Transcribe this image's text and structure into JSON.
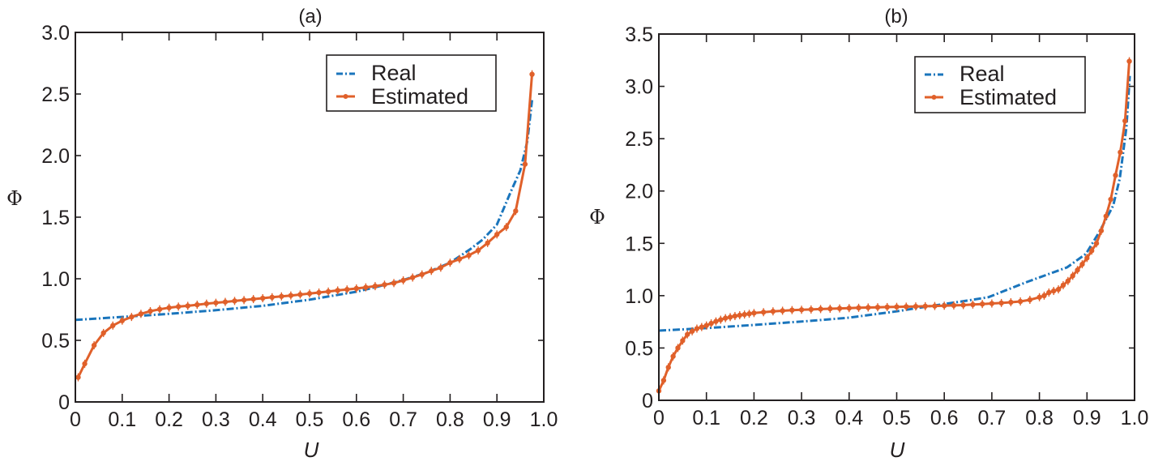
{
  "colors": {
    "real": "#1a75bc",
    "estimated": "#e0602a",
    "axis": "#231f20"
  },
  "chart_data": [
    {
      "type": "line",
      "title": "(a)",
      "xlabel": "U",
      "ylabel": "Φ",
      "xlim": [
        0,
        1.0
      ],
      "ylim": [
        0,
        3.0
      ],
      "xticks": [
        "0",
        "0.1",
        "0.2",
        "0.3",
        "0.4",
        "0.5",
        "0.6",
        "0.7",
        "0.8",
        "0.9",
        "1.0"
      ],
      "yticks": [
        "0",
        "0.5",
        "1.0",
        "1.5",
        "2.0",
        "2.5",
        "3.0"
      ],
      "xtick_values": [
        0,
        0.1,
        0.2,
        0.3,
        0.4,
        0.5,
        0.6,
        0.7,
        0.8,
        0.9,
        1.0
      ],
      "ytick_values": [
        0,
        0.5,
        1.0,
        1.5,
        2.0,
        2.5,
        3.0
      ],
      "grid": false,
      "legend": {
        "position": "top-right",
        "entries": [
          "Real",
          "Estimated"
        ]
      },
      "series": [
        {
          "name": "Real",
          "style": "dash-dot",
          "x": [
            0,
            0.1,
            0.2,
            0.3,
            0.4,
            0.5,
            0.6,
            0.65,
            0.7,
            0.75,
            0.8,
            0.843,
            0.87,
            0.9,
            0.93,
            0.95,
            0.965,
            0.975
          ],
          "y": [
            0.666,
            0.69,
            0.715,
            0.745,
            0.78,
            0.83,
            0.895,
            0.94,
            0.99,
            1.05,
            1.13,
            1.24,
            1.32,
            1.44,
            1.71,
            1.88,
            2.12,
            2.45
          ]
        },
        {
          "name": "Estimated",
          "style": "solid-markers",
          "x": [
            0.006,
            0.02,
            0.04,
            0.06,
            0.08,
            0.1,
            0.12,
            0.14,
            0.16,
            0.18,
            0.2,
            0.22,
            0.24,
            0.26,
            0.28,
            0.3,
            0.32,
            0.34,
            0.36,
            0.38,
            0.4,
            0.42,
            0.44,
            0.46,
            0.48,
            0.5,
            0.52,
            0.54,
            0.56,
            0.58,
            0.6,
            0.62,
            0.64,
            0.66,
            0.68,
            0.7,
            0.72,
            0.74,
            0.76,
            0.78,
            0.8,
            0.82,
            0.84,
            0.86,
            0.88,
            0.9,
            0.92,
            0.94,
            0.96,
            0.975
          ],
          "y": [
            0.2,
            0.31,
            0.46,
            0.56,
            0.62,
            0.66,
            0.69,
            0.715,
            0.737,
            0.752,
            0.765,
            0.774,
            0.78,
            0.789,
            0.798,
            0.805,
            0.812,
            0.82,
            0.827,
            0.835,
            0.842,
            0.85,
            0.857,
            0.864,
            0.872,
            0.88,
            0.888,
            0.896,
            0.905,
            0.913,
            0.921,
            0.93,
            0.94,
            0.952,
            0.965,
            0.987,
            1.01,
            1.035,
            1.064,
            1.09,
            1.13,
            1.16,
            1.19,
            1.23,
            1.29,
            1.36,
            1.42,
            1.55,
            1.93,
            2.66
          ]
        }
      ]
    },
    {
      "type": "line",
      "title": "(b)",
      "xlabel": "U",
      "ylabel": "Φ",
      "xlim": [
        0,
        1.0
      ],
      "ylim": [
        0,
        3.5
      ],
      "xticks": [
        "0",
        "0.1",
        "0.2",
        "0.3",
        "0.4",
        "0.5",
        "0.6",
        "0.7",
        "0.8",
        "0.9",
        "1.0"
      ],
      "yticks": [
        "0",
        "0.5",
        "1.0",
        "1.5",
        "2.0",
        "2.5",
        "3.0",
        "3.5"
      ],
      "xtick_values": [
        0,
        0.1,
        0.2,
        0.3,
        0.4,
        0.5,
        0.6,
        0.7,
        0.8,
        0.9,
        1.0
      ],
      "ytick_values": [
        0,
        0.5,
        1.0,
        1.5,
        2.0,
        2.5,
        3.0,
        3.5
      ],
      "grid": false,
      "legend": {
        "position": "top-right",
        "entries": [
          "Real",
          "Estimated"
        ]
      },
      "series": [
        {
          "name": "Real",
          "style": "dash-dot",
          "x": [
            0,
            0.1,
            0.2,
            0.32,
            0.4,
            0.5,
            0.54,
            0.6,
            0.659,
            0.693,
            0.773,
            0.858,
            0.898,
            0.926,
            0.955,
            0.969,
            0.983,
            0.99
          ],
          "y": [
            0.666,
            0.69,
            0.72,
            0.76,
            0.79,
            0.85,
            0.88,
            0.92,
            0.96,
            0.986,
            1.13,
            1.27,
            1.4,
            1.61,
            1.86,
            2.12,
            2.61,
            3.1
          ]
        },
        {
          "name": "Estimated",
          "style": "solid-markers",
          "x": [
            0.0,
            0.01,
            0.02,
            0.03,
            0.04,
            0.05,
            0.06,
            0.07,
            0.08,
            0.09,
            0.1,
            0.11,
            0.12,
            0.13,
            0.14,
            0.15,
            0.16,
            0.17,
            0.18,
            0.19,
            0.2,
            0.22,
            0.24,
            0.26,
            0.28,
            0.3,
            0.32,
            0.34,
            0.36,
            0.38,
            0.4,
            0.42,
            0.44,
            0.46,
            0.48,
            0.5,
            0.52,
            0.54,
            0.56,
            0.58,
            0.6,
            0.62,
            0.64,
            0.66,
            0.68,
            0.7,
            0.72,
            0.74,
            0.76,
            0.78,
            0.8,
            0.81,
            0.82,
            0.83,
            0.84,
            0.85,
            0.86,
            0.87,
            0.88,
            0.89,
            0.9,
            0.91,
            0.92,
            0.93,
            0.94,
            0.95,
            0.96,
            0.97,
            0.98,
            0.989
          ],
          "y": [
            0.09,
            0.19,
            0.315,
            0.42,
            0.5,
            0.57,
            0.63,
            0.66,
            0.685,
            0.7,
            0.715,
            0.735,
            0.754,
            0.77,
            0.785,
            0.795,
            0.805,
            0.813,
            0.82,
            0.827,
            0.834,
            0.842,
            0.85,
            0.856,
            0.862,
            0.865,
            0.868,
            0.872,
            0.875,
            0.878,
            0.881,
            0.884,
            0.887,
            0.889,
            0.891,
            0.893,
            0.895,
            0.897,
            0.899,
            0.901,
            0.904,
            0.907,
            0.91,
            0.915,
            0.92,
            0.925,
            0.93,
            0.937,
            0.945,
            0.96,
            0.985,
            1.0,
            1.03,
            1.045,
            1.06,
            1.1,
            1.14,
            1.19,
            1.245,
            1.3,
            1.36,
            1.43,
            1.5,
            1.62,
            1.76,
            1.92,
            2.15,
            2.37,
            2.67,
            3.24
          ]
        }
      ]
    }
  ]
}
